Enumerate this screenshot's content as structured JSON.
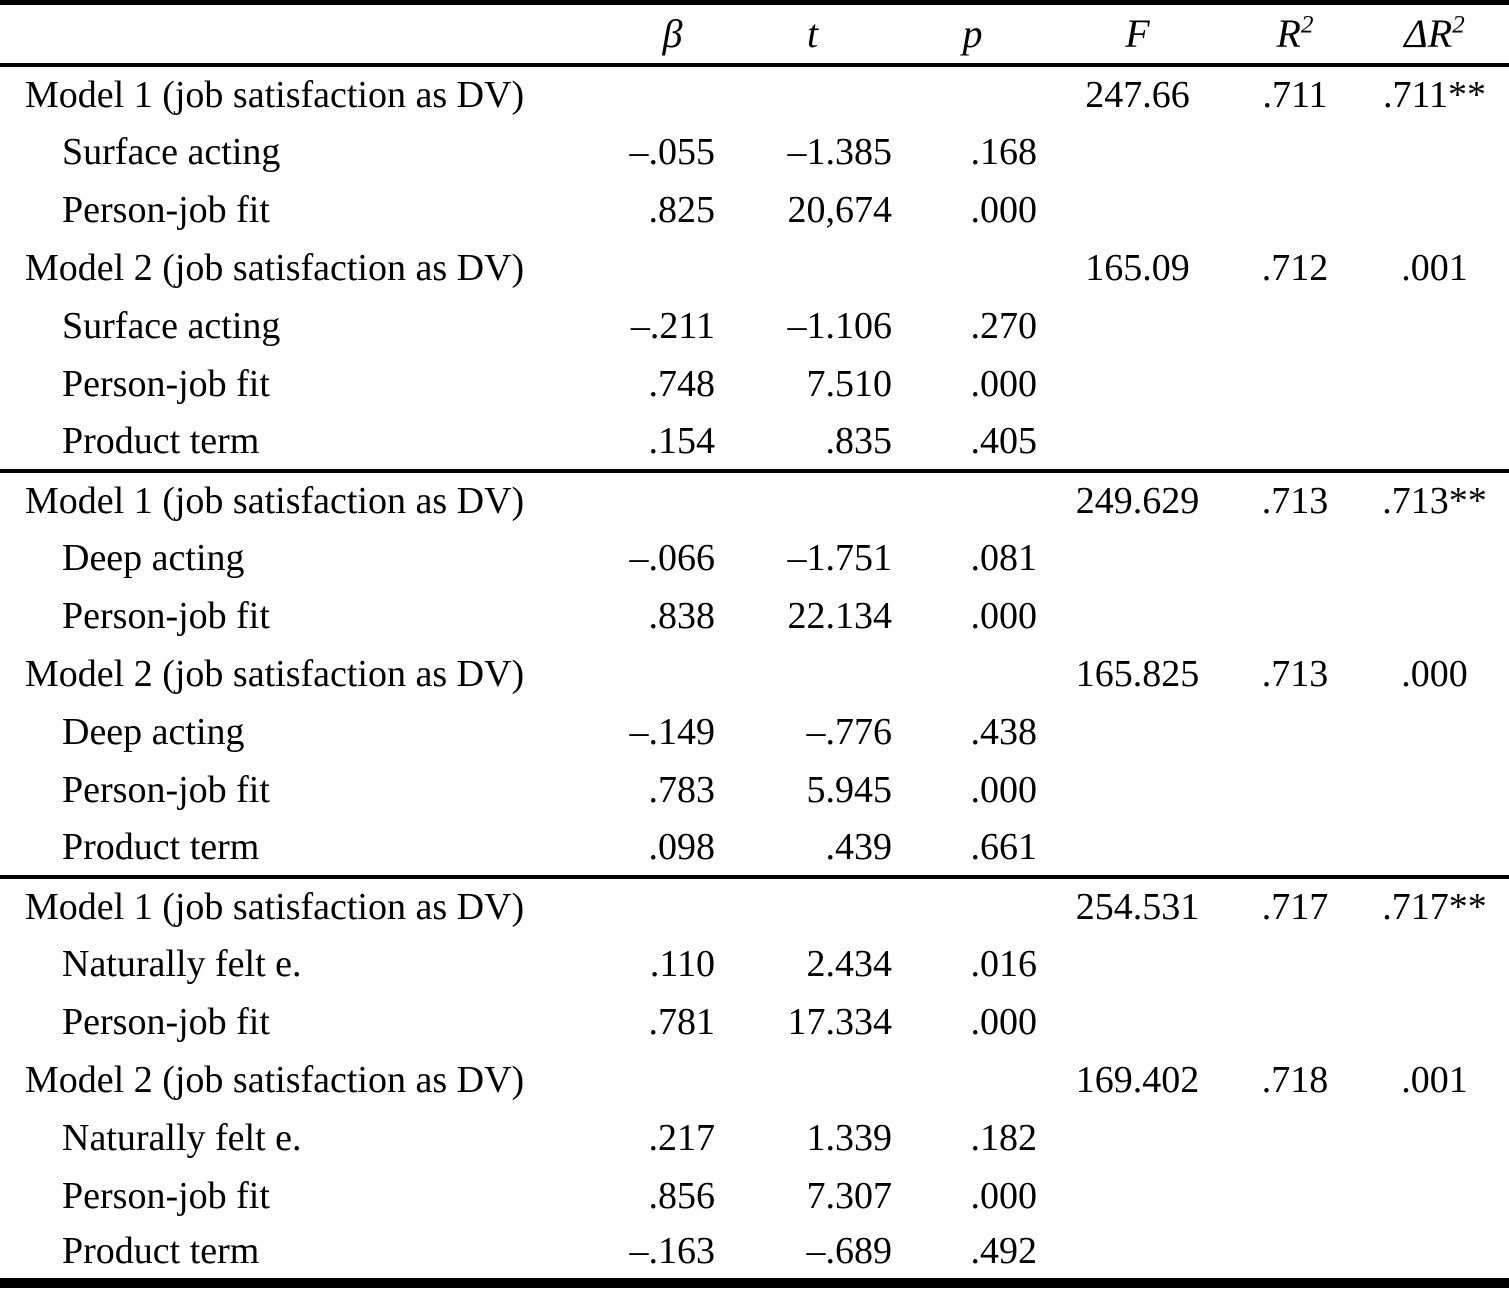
{
  "table": {
    "header": {
      "label": "",
      "beta": "β",
      "t": "t",
      "p": "p",
      "F": "F",
      "r2_base": "R",
      "r2_sup": "2",
      "dr2_base": "ΔR",
      "dr2_sup": "2"
    },
    "sections": [
      {
        "rows": [
          {
            "label": "Model 1 (job satisfaction as DV)",
            "indent": false,
            "beta": "",
            "t": "",
            "p": "",
            "F": "247.66",
            "R2": ".711",
            "dR2": ".711**"
          },
          {
            "label": "Surface acting",
            "indent": true,
            "beta": "–.055",
            "t": "–1.385",
            "p": ".168",
            "F": "",
            "R2": "",
            "dR2": ""
          },
          {
            "label": "Person-job fit",
            "indent": true,
            "beta": ".825",
            "t": "20,674",
            "p": ".000",
            "F": "",
            "R2": "",
            "dR2": ""
          },
          {
            "label": "Model 2 (job satisfaction as DV)",
            "indent": false,
            "beta": "",
            "t": "",
            "p": "",
            "F": "165.09",
            "R2": ".712",
            "dR2": ".001"
          },
          {
            "label": "Surface acting",
            "indent": true,
            "beta": "–.211",
            "t": "–1.106",
            "p": ".270",
            "F": "",
            "R2": "",
            "dR2": ""
          },
          {
            "label": "Person-job fit",
            "indent": true,
            "beta": ".748",
            "t": "7.510",
            "p": ".000",
            "F": "",
            "R2": "",
            "dR2": ""
          },
          {
            "label": "Product term",
            "indent": true,
            "beta": ".154",
            "t": ".835",
            "p": ".405",
            "F": "",
            "R2": "",
            "dR2": ""
          }
        ]
      },
      {
        "rows": [
          {
            "label": "Model 1 (job satisfaction as DV)",
            "indent": false,
            "beta": "",
            "t": "",
            "p": "",
            "F": "249.629",
            "R2": ".713",
            "dR2": ".713**"
          },
          {
            "label": "Deep acting",
            "indent": true,
            "beta": "–.066",
            "t": "–1.751",
            "p": ".081",
            "F": "",
            "R2": "",
            "dR2": ""
          },
          {
            "label": "Person-job fit",
            "indent": true,
            "beta": ".838",
            "t": "22.134",
            "p": ".000",
            "F": "",
            "R2": "",
            "dR2": ""
          },
          {
            "label": "Model 2 (job satisfaction as DV)",
            "indent": false,
            "beta": "",
            "t": "",
            "p": "",
            "F": "165.825",
            "R2": ".713",
            "dR2": ".000"
          },
          {
            "label": "Deep acting",
            "indent": true,
            "beta": "–.149",
            "t": "–.776",
            "p": ".438",
            "F": "",
            "R2": "",
            "dR2": ""
          },
          {
            "label": "Person-job fit",
            "indent": true,
            "beta": ".783",
            "t": "5.945",
            "p": ".000",
            "F": "",
            "R2": "",
            "dR2": ""
          },
          {
            "label": "Product term",
            "indent": true,
            "beta": ".098",
            "t": ".439",
            "p": ".661",
            "F": "",
            "R2": "",
            "dR2": ""
          }
        ]
      },
      {
        "rows": [
          {
            "label": "Model 1 (job satisfaction as DV)",
            "indent": false,
            "beta": "",
            "t": "",
            "p": "",
            "F": "254.531",
            "R2": ".717",
            "dR2": ".717**"
          },
          {
            "label": "Naturally felt e.",
            "indent": true,
            "beta": ".110",
            "t": "2.434",
            "p": ".016",
            "F": "",
            "R2": "",
            "dR2": ""
          },
          {
            "label": "Person-job fit",
            "indent": true,
            "beta": ".781",
            "t": "17.334",
            "p": ".000",
            "F": "",
            "R2": "",
            "dR2": ""
          },
          {
            "label": "Model 2 (job satisfaction as DV)",
            "indent": false,
            "beta": "",
            "t": "",
            "p": "",
            "F": "169.402",
            "R2": ".718",
            "dR2": ".001"
          },
          {
            "label": "Naturally felt e.",
            "indent": true,
            "beta": ".217",
            "t": "1.339",
            "p": ".182",
            "F": "",
            "R2": "",
            "dR2": ""
          },
          {
            "label": "Person-job fit",
            "indent": true,
            "beta": ".856",
            "t": "7.307",
            "p": ".000",
            "F": "",
            "R2": "",
            "dR2": ""
          },
          {
            "label": "Product term",
            "indent": true,
            "beta": "–.163",
            "t": "–.689",
            "p": ".492",
            "F": "",
            "R2": "",
            "dR2": ""
          }
        ]
      }
    ]
  }
}
